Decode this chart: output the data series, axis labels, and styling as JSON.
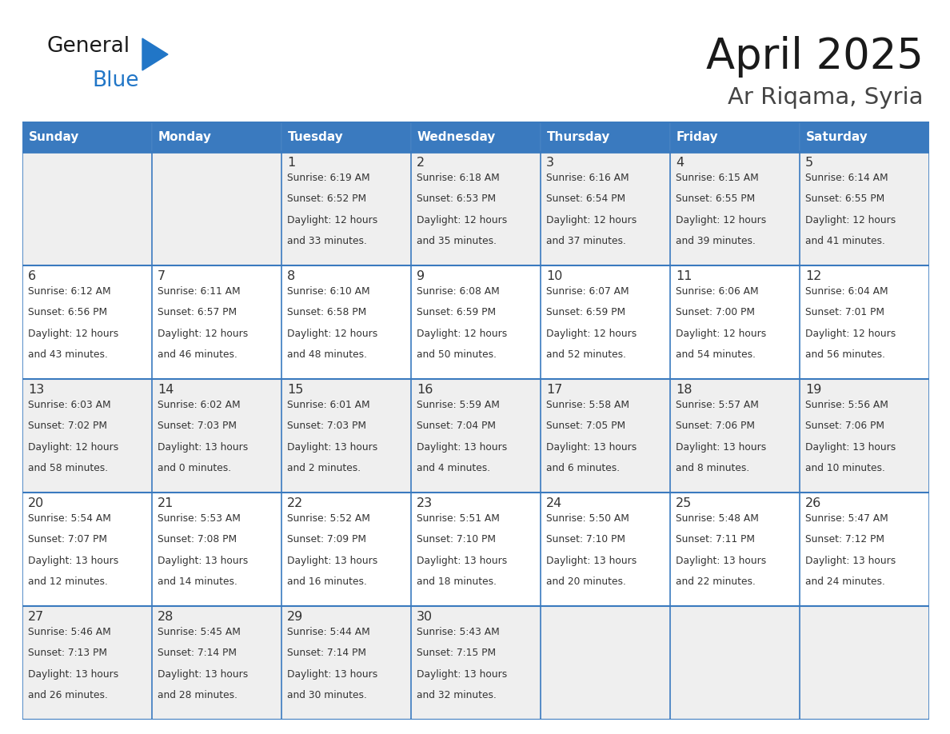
{
  "title": "April 2025",
  "subtitle": "Ar Riqama, Syria",
  "days_of_week": [
    "Sunday",
    "Monday",
    "Tuesday",
    "Wednesday",
    "Thursday",
    "Friday",
    "Saturday"
  ],
  "header_bg_color": "#3a7abf",
  "header_text_color": "#ffffff",
  "row_colors": [
    "#efefef",
    "#ffffff"
  ],
  "cell_text_color": "#333333",
  "grid_color": "#3a7abf",
  "title_color": "#1a1a1a",
  "subtitle_color": "#444444",
  "generalblue_black": "#1a1a1a",
  "generalblue_blue": "#2176c7",
  "calendar": [
    [
      {
        "day": "",
        "sunrise": "",
        "sunset": "",
        "daylight": ""
      },
      {
        "day": "",
        "sunrise": "",
        "sunset": "",
        "daylight": ""
      },
      {
        "day": "1",
        "sunrise": "6:19 AM",
        "sunset": "6:52 PM",
        "daylight": "12 hours and 33 minutes."
      },
      {
        "day": "2",
        "sunrise": "6:18 AM",
        "sunset": "6:53 PM",
        "daylight": "12 hours and 35 minutes."
      },
      {
        "day": "3",
        "sunrise": "6:16 AM",
        "sunset": "6:54 PM",
        "daylight": "12 hours and 37 minutes."
      },
      {
        "day": "4",
        "sunrise": "6:15 AM",
        "sunset": "6:55 PM",
        "daylight": "12 hours and 39 minutes."
      },
      {
        "day": "5",
        "sunrise": "6:14 AM",
        "sunset": "6:55 PM",
        "daylight": "12 hours and 41 minutes."
      }
    ],
    [
      {
        "day": "6",
        "sunrise": "6:12 AM",
        "sunset": "6:56 PM",
        "daylight": "12 hours and 43 minutes."
      },
      {
        "day": "7",
        "sunrise": "6:11 AM",
        "sunset": "6:57 PM",
        "daylight": "12 hours and 46 minutes."
      },
      {
        "day": "8",
        "sunrise": "6:10 AM",
        "sunset": "6:58 PM",
        "daylight": "12 hours and 48 minutes."
      },
      {
        "day": "9",
        "sunrise": "6:08 AM",
        "sunset": "6:59 PM",
        "daylight": "12 hours and 50 minutes."
      },
      {
        "day": "10",
        "sunrise": "6:07 AM",
        "sunset": "6:59 PM",
        "daylight": "12 hours and 52 minutes."
      },
      {
        "day": "11",
        "sunrise": "6:06 AM",
        "sunset": "7:00 PM",
        "daylight": "12 hours and 54 minutes."
      },
      {
        "day": "12",
        "sunrise": "6:04 AM",
        "sunset": "7:01 PM",
        "daylight": "12 hours and 56 minutes."
      }
    ],
    [
      {
        "day": "13",
        "sunrise": "6:03 AM",
        "sunset": "7:02 PM",
        "daylight": "12 hours and 58 minutes."
      },
      {
        "day": "14",
        "sunrise": "6:02 AM",
        "sunset": "7:03 PM",
        "daylight": "13 hours and 0 minutes."
      },
      {
        "day": "15",
        "sunrise": "6:01 AM",
        "sunset": "7:03 PM",
        "daylight": "13 hours and 2 minutes."
      },
      {
        "day": "16",
        "sunrise": "5:59 AM",
        "sunset": "7:04 PM",
        "daylight": "13 hours and 4 minutes."
      },
      {
        "day": "17",
        "sunrise": "5:58 AM",
        "sunset": "7:05 PM",
        "daylight": "13 hours and 6 minutes."
      },
      {
        "day": "18",
        "sunrise": "5:57 AM",
        "sunset": "7:06 PM",
        "daylight": "13 hours and 8 minutes."
      },
      {
        "day": "19",
        "sunrise": "5:56 AM",
        "sunset": "7:06 PM",
        "daylight": "13 hours and 10 minutes."
      }
    ],
    [
      {
        "day": "20",
        "sunrise": "5:54 AM",
        "sunset": "7:07 PM",
        "daylight": "13 hours and 12 minutes."
      },
      {
        "day": "21",
        "sunrise": "5:53 AM",
        "sunset": "7:08 PM",
        "daylight": "13 hours and 14 minutes."
      },
      {
        "day": "22",
        "sunrise": "5:52 AM",
        "sunset": "7:09 PM",
        "daylight": "13 hours and 16 minutes."
      },
      {
        "day": "23",
        "sunrise": "5:51 AM",
        "sunset": "7:10 PM",
        "daylight": "13 hours and 18 minutes."
      },
      {
        "day": "24",
        "sunrise": "5:50 AM",
        "sunset": "7:10 PM",
        "daylight": "13 hours and 20 minutes."
      },
      {
        "day": "25",
        "sunrise": "5:48 AM",
        "sunset": "7:11 PM",
        "daylight": "13 hours and 22 minutes."
      },
      {
        "day": "26",
        "sunrise": "5:47 AM",
        "sunset": "7:12 PM",
        "daylight": "13 hours and 24 minutes."
      }
    ],
    [
      {
        "day": "27",
        "sunrise": "5:46 AM",
        "sunset": "7:13 PM",
        "daylight": "13 hours and 26 minutes."
      },
      {
        "day": "28",
        "sunrise": "5:45 AM",
        "sunset": "7:14 PM",
        "daylight": "13 hours and 28 minutes."
      },
      {
        "day": "29",
        "sunrise": "5:44 AM",
        "sunset": "7:14 PM",
        "daylight": "13 hours and 30 minutes."
      },
      {
        "day": "30",
        "sunrise": "5:43 AM",
        "sunset": "7:15 PM",
        "daylight": "13 hours and 32 minutes."
      },
      {
        "day": "",
        "sunrise": "",
        "sunset": "",
        "daylight": ""
      },
      {
        "day": "",
        "sunrise": "",
        "sunset": "",
        "daylight": ""
      },
      {
        "day": "",
        "sunrise": "",
        "sunset": "",
        "daylight": ""
      }
    ]
  ]
}
